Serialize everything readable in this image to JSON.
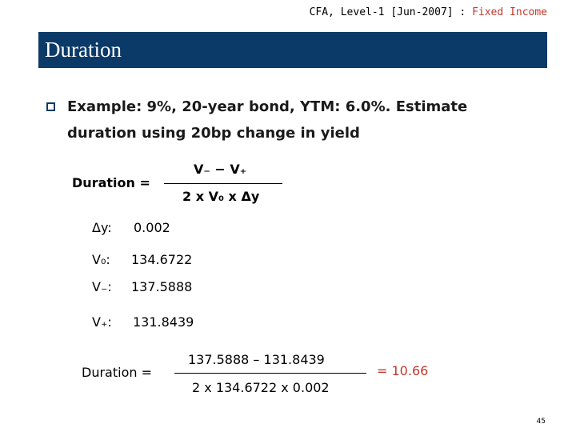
{
  "header": {
    "course": "CFA, Level-1 [Jun-2007] :",
    "topic": "Fixed Income"
  },
  "title": "Duration",
  "bullet": {
    "line1": "Example: 9%, 20-year bond, YTM: 6.0%. Estimate",
    "line2": "duration using 20bp change in yield"
  },
  "formula": {
    "lhs": "Duration =",
    "numerator": "V₋  − V₊",
    "denominator": "2 x V₀ x Δy"
  },
  "variables": [
    {
      "label": "Δy:",
      "value": "0.002"
    },
    {
      "label": "V₀:",
      "value": "134.6722"
    },
    {
      "label": "V₋:",
      "value": "137.5888"
    },
    {
      "label": "V₊:",
      "value": "131.8439"
    }
  ],
  "computation": {
    "lhs": "Duration =",
    "numerator": "137.5888 – 131.8439",
    "denominator": "2 x 134.6722 x 0.002",
    "result": "= 10.66"
  },
  "page_number": "45"
}
